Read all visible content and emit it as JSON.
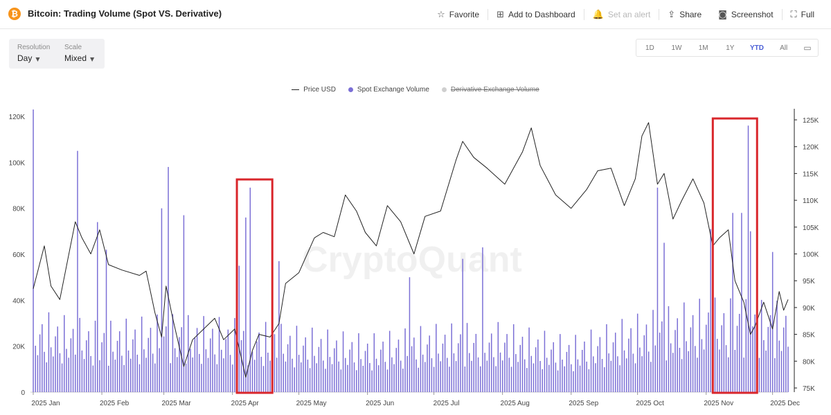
{
  "header": {
    "title": "Bitcoin: Trading Volume (Spot VS. Derivative)",
    "actions": [
      {
        "label": "Favorite",
        "icon": "star-icon",
        "glyph": "☆"
      },
      {
        "label": "Add to Dashboard",
        "icon": "dashboard-add-icon",
        "glyph": "⊞"
      },
      {
        "label": "Set an alert",
        "icon": "bell-icon",
        "glyph": "🔔",
        "disabled": true
      },
      {
        "label": "Share",
        "icon": "share-icon",
        "glyph": "⇪"
      },
      {
        "label": "Screenshot",
        "icon": "camera-icon",
        "glyph": "◙"
      },
      {
        "label": "Full",
        "icon": "fullscreen-icon",
        "glyph": "⛶"
      }
    ]
  },
  "controls": {
    "resolution": {
      "label": "Resolution",
      "value": "Day"
    },
    "scale": {
      "label": "Scale",
      "value": "Mixed"
    }
  },
  "ranges": {
    "options": [
      "1D",
      "1W",
      "1M",
      "1Y",
      "YTD",
      "All"
    ],
    "active": "YTD"
  },
  "legend": {
    "price": "Price USD",
    "spot": "Spot Exchange Volume",
    "derivative": "Derivative Exchange Volume"
  },
  "watermark": "CryptoQuant",
  "colors": {
    "spot": "#7b6fd6",
    "price": "#222222",
    "derivative": "#cfcfcf",
    "highlight": "#d9262b",
    "active_range": "#4b5fd6"
  },
  "chart_data": {
    "type": "bar",
    "title": "Bitcoin: Trading Volume (Spot VS. Derivative)",
    "x_axis": {
      "start": "2025-01-01",
      "end": "2025-12-08",
      "tick_labels": [
        "2025 Jan",
        "2025 Feb",
        "2025 Mar",
        "2025 Apr",
        "2025 May",
        "2025 Jun",
        "2025 Jul",
        "2025 Aug",
        "2025 Sep",
        "2025 Oct",
        "2025 Nov",
        "2025 Dec"
      ]
    },
    "left_axis": {
      "ticks": [
        0,
        20000,
        40000,
        60000,
        80000,
        100000,
        120000
      ],
      "tick_labels": [
        "0",
        "20K",
        "40K",
        "60K",
        "80K",
        "100K",
        "120K"
      ],
      "range": [
        0,
        123000
      ]
    },
    "right_axis": {
      "ticks": [
        75000,
        80000,
        85000,
        90000,
        95000,
        100000,
        105000,
        110000,
        115000,
        120000,
        125000
      ],
      "tick_labels": [
        "75K",
        "80K",
        "85K",
        "90K",
        "95K",
        "100K",
        "105K",
        "110K",
        "115K",
        "120K",
        "125K"
      ],
      "range": [
        74000,
        127000
      ]
    },
    "grid": false,
    "legend_position": "top-center",
    "highlights": [
      {
        "from": "2025-04-03",
        "to": "2025-04-19"
      },
      {
        "from": "2025-11-04",
        "to": "2025-11-24"
      }
    ],
    "spot_daily_pattern": [
      0.62,
      0.35,
      0.28,
      0.44,
      0.52,
      0.31,
      0.23
    ],
    "spot_volume_baseline": [
      [
        "2025-01-01",
        40000
      ],
      [
        "2025-02-01",
        34000
      ],
      [
        "2025-03-01",
        38000
      ],
      [
        "2025-04-01",
        36000
      ],
      [
        "2025-05-01",
        32000
      ],
      [
        "2025-06-01",
        28000
      ],
      [
        "2025-07-01",
        33000
      ],
      [
        "2025-08-01",
        34000
      ],
      [
        "2025-09-01",
        27000
      ],
      [
        "2025-10-01",
        38000
      ],
      [
        "2025-11-01",
        46000
      ],
      [
        "2025-12-08",
        44000
      ]
    ],
    "spot_volume_spikes": [
      {
        "date": "2025-01-01",
        "value": 123000
      },
      {
        "date": "2025-01-21",
        "value": 105000
      },
      {
        "date": "2025-01-30",
        "value": 74000
      },
      {
        "date": "2025-02-03",
        "value": 62000
      },
      {
        "date": "2025-02-28",
        "value": 80000
      },
      {
        "date": "2025-03-03",
        "value": 98000
      },
      {
        "date": "2025-03-10",
        "value": 77000
      },
      {
        "date": "2025-04-04",
        "value": 55000
      },
      {
        "date": "2025-04-07",
        "value": 76000
      },
      {
        "date": "2025-04-09",
        "value": 89000
      },
      {
        "date": "2025-04-22",
        "value": 57000
      },
      {
        "date": "2025-06-20",
        "value": 50000
      },
      {
        "date": "2025-07-14",
        "value": 58000
      },
      {
        "date": "2025-07-23",
        "value": 63000
      },
      {
        "date": "2025-10-10",
        "value": 89000
      },
      {
        "date": "2025-10-13",
        "value": 65000
      },
      {
        "date": "2025-11-03",
        "value": 71000
      },
      {
        "date": "2025-11-13",
        "value": 78000
      },
      {
        "date": "2025-11-17",
        "value": 78000
      },
      {
        "date": "2025-11-20",
        "value": 116000
      },
      {
        "date": "2025-11-21",
        "value": 70000
      },
      {
        "date": "2025-12-01",
        "value": 61000
      }
    ],
    "price_usd": [
      [
        "2025-01-01",
        93500
      ],
      [
        "2025-01-06",
        101500
      ],
      [
        "2025-01-09",
        94000
      ],
      [
        "2025-01-13",
        91500
      ],
      [
        "2025-01-20",
        106000
      ],
      [
        "2025-01-23",
        103000
      ],
      [
        "2025-01-27",
        100000
      ],
      [
        "2025-01-31",
        104500
      ],
      [
        "2025-02-04",
        98000
      ],
      [
        "2025-02-10",
        97000
      ],
      [
        "2025-02-18",
        96000
      ],
      [
        "2025-02-21",
        96800
      ],
      [
        "2025-02-25",
        89000
      ],
      [
        "2025-02-28",
        84500
      ],
      [
        "2025-03-02",
        94000
      ],
      [
        "2025-03-05",
        88000
      ],
      [
        "2025-03-10",
        79000
      ],
      [
        "2025-03-14",
        84000
      ],
      [
        "2025-03-19",
        86000
      ],
      [
        "2025-03-24",
        88000
      ],
      [
        "2025-03-28",
        84000
      ],
      [
        "2025-04-02",
        86000
      ],
      [
        "2025-04-07",
        77000
      ],
      [
        "2025-04-10",
        82000
      ],
      [
        "2025-04-13",
        85000
      ],
      [
        "2025-04-18",
        84500
      ],
      [
        "2025-04-22",
        87000
      ],
      [
        "2025-04-25",
        94500
      ],
      [
        "2025-05-01",
        96500
      ],
      [
        "2025-05-08",
        103000
      ],
      [
        "2025-05-12",
        104000
      ],
      [
        "2025-05-17",
        103200
      ],
      [
        "2025-05-22",
        111000
      ],
      [
        "2025-05-27",
        108000
      ],
      [
        "2025-05-31",
        104000
      ],
      [
        "2025-06-05",
        101500
      ],
      [
        "2025-06-10",
        109000
      ],
      [
        "2025-06-16",
        106000
      ],
      [
        "2025-06-22",
        100000
      ],
      [
        "2025-06-27",
        107000
      ],
      [
        "2025-07-04",
        108000
      ],
      [
        "2025-07-11",
        117500
      ],
      [
        "2025-07-14",
        121000
      ],
      [
        "2025-07-19",
        118000
      ],
      [
        "2025-07-25",
        116000
      ],
      [
        "2025-08-02",
        113000
      ],
      [
        "2025-08-10",
        119000
      ],
      [
        "2025-08-14",
        123500
      ],
      [
        "2025-08-18",
        116500
      ],
      [
        "2025-08-25",
        111000
      ],
      [
        "2025-09-01",
        108500
      ],
      [
        "2025-09-08",
        112000
      ],
      [
        "2025-09-13",
        115500
      ],
      [
        "2025-09-19",
        116000
      ],
      [
        "2025-09-25",
        109000
      ],
      [
        "2025-09-30",
        114000
      ],
      [
        "2025-10-03",
        122000
      ],
      [
        "2025-10-06",
        124500
      ],
      [
        "2025-10-10",
        113000
      ],
      [
        "2025-10-13",
        115000
      ],
      [
        "2025-10-17",
        106500
      ],
      [
        "2025-10-21",
        110000
      ],
      [
        "2025-10-26",
        114000
      ],
      [
        "2025-10-31",
        109500
      ],
      [
        "2025-11-04",
        101500
      ],
      [
        "2025-11-07",
        103000
      ],
      [
        "2025-11-11",
        104500
      ],
      [
        "2025-11-14",
        95000
      ],
      [
        "2025-11-18",
        91000
      ],
      [
        "2025-11-21",
        85000
      ],
      [
        "2025-11-23",
        86500
      ],
      [
        "2025-11-27",
        91000
      ],
      [
        "2025-12-01",
        86000
      ],
      [
        "2025-12-04",
        93000
      ],
      [
        "2025-12-06",
        89500
      ],
      [
        "2025-12-08",
        91500
      ]
    ]
  }
}
